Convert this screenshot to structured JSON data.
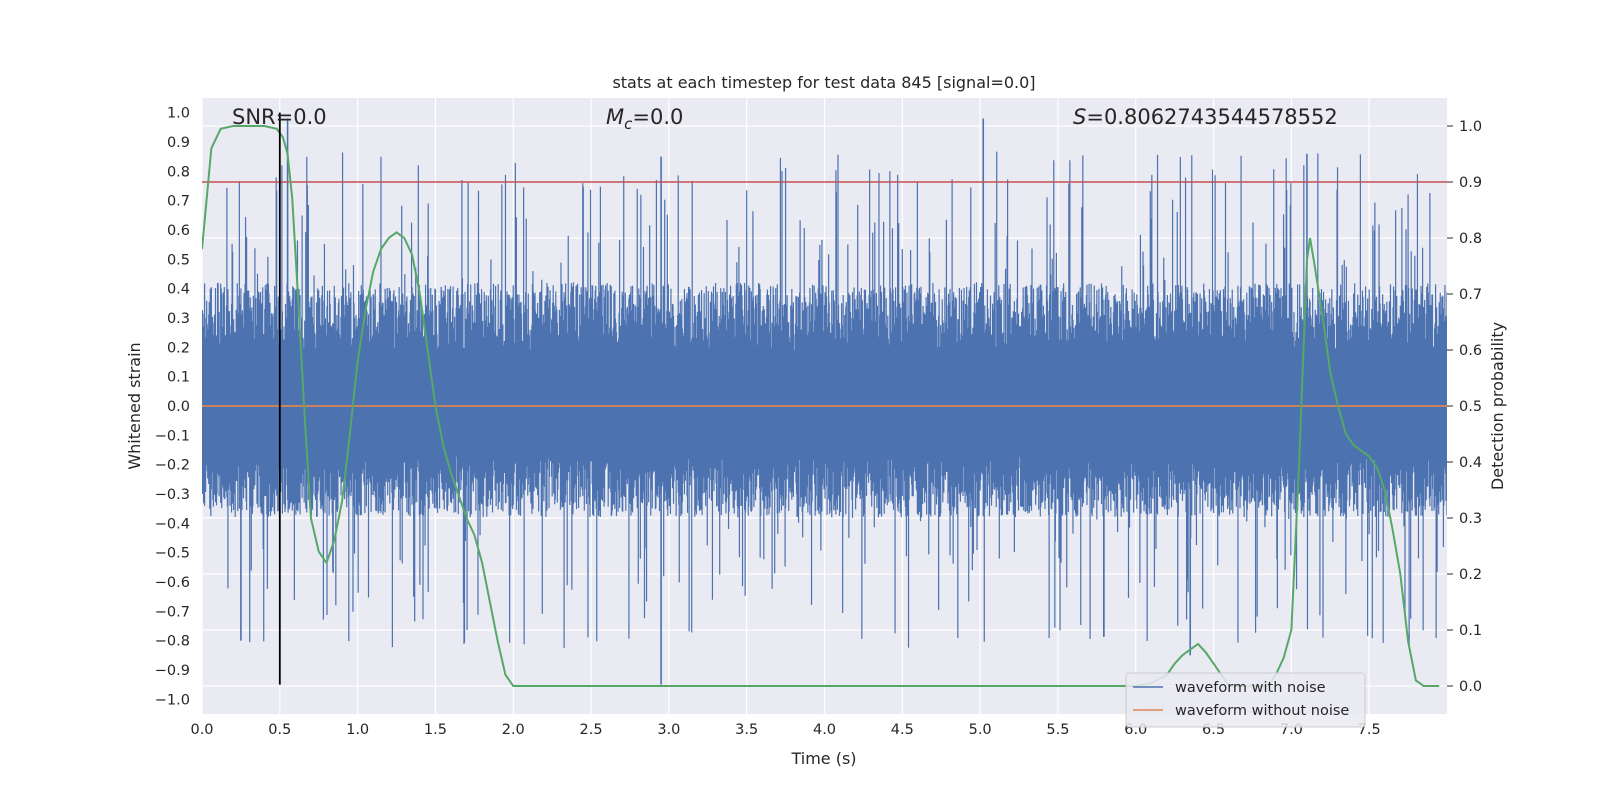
{
  "chart_data": {
    "type": "line",
    "title": "stats at each timestep for test data 845 [signal=0.0]",
    "xlabel": "Time (s)",
    "ylabel": "Whitened strain",
    "y2label": "Detection probability",
    "xlim": [
      0.0,
      8.0
    ],
    "ylim": [
      -1.05,
      1.05
    ],
    "y2lim": [
      -0.05,
      1.05
    ],
    "x_ticks": [
      "0.0",
      "0.5",
      "1.0",
      "1.5",
      "2.0",
      "2.5",
      "3.0",
      "3.5",
      "4.0",
      "4.5",
      "5.0",
      "5.5",
      "6.0",
      "6.5",
      "7.0",
      "7.5"
    ],
    "y_ticks": [
      "1.0",
      "0.9",
      "0.8",
      "0.7",
      "0.6",
      "0.5",
      "0.4",
      "0.3",
      "0.2",
      "0.1",
      "0.0",
      "-0.1",
      "-0.2",
      "-0.3",
      "-0.4",
      "-0.5",
      "-0.6",
      "-0.7",
      "-0.8",
      "-0.9",
      "-1.0"
    ],
    "y2_ticks": [
      "1.0",
      "0.9",
      "0.8",
      "0.7",
      "0.6",
      "0.5",
      "0.4",
      "0.3",
      "0.2",
      "0.1",
      "0.0"
    ],
    "grid": true,
    "legend_position": "lower-right",
    "annotations": {
      "snr": "SNR=0.0",
      "mc_symbol": "M",
      "mc_sub": "c",
      "mc_value": "=0.0",
      "s_symbol": "S",
      "s_value": "=0.8062743544578552"
    },
    "series": [
      {
        "name": "waveform with noise",
        "color": "#4c72b0",
        "axis": "left",
        "noise_envelope": {
          "typical_upper": 0.42,
          "typical_lower": -0.38,
          "max": 0.98,
          "min": -0.95
        },
        "peaks": [
          [
            0.55,
            0.98
          ],
          [
            2.95,
            0.85
          ],
          [
            5.02,
            0.98
          ],
          [
            7.1,
            0.86
          ],
          [
            2.95,
            -0.95
          ],
          [
            0.25,
            -0.8
          ],
          [
            6.35,
            -0.85
          ]
        ]
      },
      {
        "name": "waveform without noise",
        "color": "#dd8452",
        "axis": "left",
        "x": [
          0.0,
          8.0
        ],
        "y": [
          0.0,
          0.0
        ]
      },
      {
        "name": "",
        "color": "#55a868",
        "axis": "right",
        "x": [
          0.0,
          0.06,
          0.12,
          0.2,
          0.3,
          0.4,
          0.48,
          0.52,
          0.55,
          0.58,
          0.62,
          0.66,
          0.7,
          0.75,
          0.8,
          0.85,
          0.9,
          0.95,
          1.0,
          1.05,
          1.1,
          1.15,
          1.2,
          1.25,
          1.3,
          1.35,
          1.4,
          1.45,
          1.5,
          1.55,
          1.6,
          1.65,
          1.7,
          1.75,
          1.8,
          1.85,
          1.9,
          1.95,
          2.0,
          2.5,
          3.0,
          3.5,
          4.0,
          4.5,
          5.0,
          5.5,
          6.0,
          6.1,
          6.2,
          6.25,
          6.3,
          6.35,
          6.4,
          6.45,
          6.5,
          6.55,
          6.6,
          6.65,
          6.7,
          6.75,
          6.8,
          6.85,
          6.9,
          6.95,
          7.0,
          7.05,
          7.1,
          7.12,
          7.15,
          7.2,
          7.25,
          7.3,
          7.35,
          7.4,
          7.45,
          7.5,
          7.55,
          7.6,
          7.65,
          7.7,
          7.75,
          7.8,
          7.85,
          7.9,
          7.95
        ],
        "y": [
          0.78,
          0.96,
          0.995,
          1.0,
          1.0,
          1.0,
          0.995,
          0.98,
          0.95,
          0.87,
          0.68,
          0.48,
          0.3,
          0.24,
          0.22,
          0.26,
          0.33,
          0.45,
          0.58,
          0.67,
          0.74,
          0.78,
          0.8,
          0.81,
          0.8,
          0.77,
          0.7,
          0.6,
          0.5,
          0.43,
          0.38,
          0.34,
          0.3,
          0.27,
          0.22,
          0.15,
          0.08,
          0.02,
          0.0,
          0.0,
          0.0,
          0.0,
          0.0,
          0.0,
          0.0,
          0.0,
          0.0,
          0.005,
          0.02,
          0.04,
          0.055,
          0.065,
          0.075,
          0.06,
          0.04,
          0.02,
          0.0,
          0.0,
          0.0,
          0.0,
          0.0,
          0.0,
          0.02,
          0.05,
          0.1,
          0.4,
          0.76,
          0.8,
          0.75,
          0.66,
          0.56,
          0.5,
          0.45,
          0.43,
          0.42,
          0.41,
          0.39,
          0.35,
          0.28,
          0.2,
          0.08,
          0.01,
          0.0,
          0.0,
          0.0
        ]
      }
    ],
    "threshold_line": {
      "axis": "right",
      "value": 0.9,
      "color": "#c44e52"
    },
    "marker_line": {
      "x": 0.5,
      "y_from": -0.95,
      "y_to": 1.0,
      "color": "#000000"
    }
  }
}
